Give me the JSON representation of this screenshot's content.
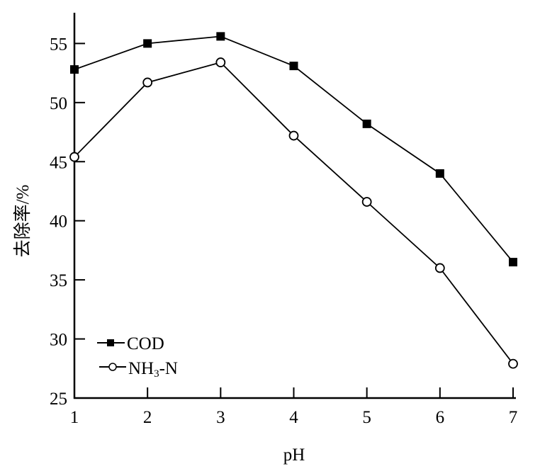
{
  "chart_data": {
    "type": "line",
    "xlabel": "pH",
    "ylabel": "去除率/%",
    "xlim": [
      1,
      7
    ],
    "ylim": [
      25,
      57.6
    ],
    "xticks": [
      1,
      2,
      3,
      4,
      5,
      6,
      7
    ],
    "yticks": [
      25,
      30,
      35,
      40,
      45,
      50,
      55
    ],
    "grid": false,
    "legend_position": "bottom-left",
    "x": [
      1,
      2,
      3,
      4,
      5,
      6,
      7
    ],
    "series": [
      {
        "name": "COD",
        "marker": "filled-square",
        "color": "#000000",
        "values": [
          52.8,
          55.0,
          55.6,
          53.1,
          48.2,
          44.0,
          36.5
        ]
      },
      {
        "name": "NH3-N",
        "marker": "open-circle",
        "color": "#000000",
        "values": [
          45.4,
          51.7,
          53.4,
          47.2,
          41.6,
          36.0,
          27.9
        ]
      }
    ],
    "legend": {
      "entries": [
        {
          "main": "COD"
        },
        {
          "main": "NH",
          "sub": "3",
          "rest": "-N"
        }
      ]
    }
  }
}
